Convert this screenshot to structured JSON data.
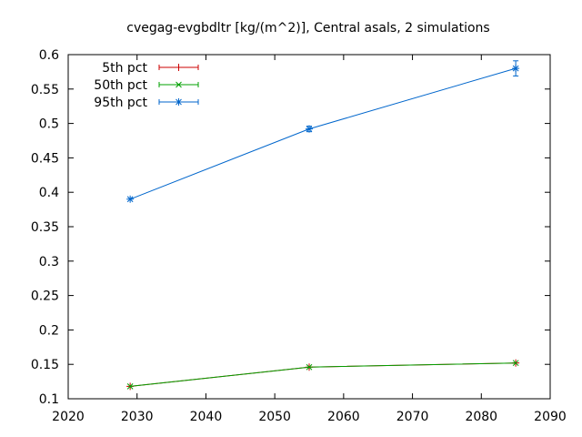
{
  "chart_data": {
    "type": "line",
    "title": "cvegag-evgbdltr [kg/(m^2)], Central asals, 2 simulations",
    "xlabel": "",
    "ylabel": "",
    "xlim": [
      2020,
      2090
    ],
    "ylim": [
      0.1,
      0.6
    ],
    "xticks": [
      2020,
      2030,
      2040,
      2050,
      2060,
      2070,
      2080,
      2090
    ],
    "xtick_labels": [
      "2020",
      "2030",
      "2040",
      "2050",
      "2060",
      "2070",
      "2080",
      "2090"
    ],
    "yticks": [
      0.1,
      0.15,
      0.2,
      0.25,
      0.3,
      0.35,
      0.4,
      0.45,
      0.5,
      0.55,
      0.6
    ],
    "ytick_labels": [
      "0.1",
      "0.15",
      "0.2",
      "0.25",
      "0.3",
      "0.35",
      "0.4",
      "0.45",
      "0.5",
      "0.55",
      "0.6"
    ],
    "grid": false,
    "legend_position": "top-left",
    "x": [
      2029,
      2055,
      2085
    ],
    "series": [
      {
        "name": "5th pct",
        "color": "#cc0000",
        "marker": "plus",
        "values": [
          0.118,
          0.146,
          0.152
        ],
        "err": [
          0.0,
          0.0,
          0.0
        ]
      },
      {
        "name": "50th pct",
        "color": "#00a000",
        "marker": "cross",
        "values": [
          0.118,
          0.146,
          0.152
        ],
        "err": [
          0.0,
          0.0,
          0.0
        ]
      },
      {
        "name": "95th pct",
        "color": "#0066cc",
        "marker": "star",
        "values": [
          0.39,
          0.492,
          0.58
        ],
        "err": [
          0.0,
          0.004,
          0.011
        ]
      }
    ]
  }
}
